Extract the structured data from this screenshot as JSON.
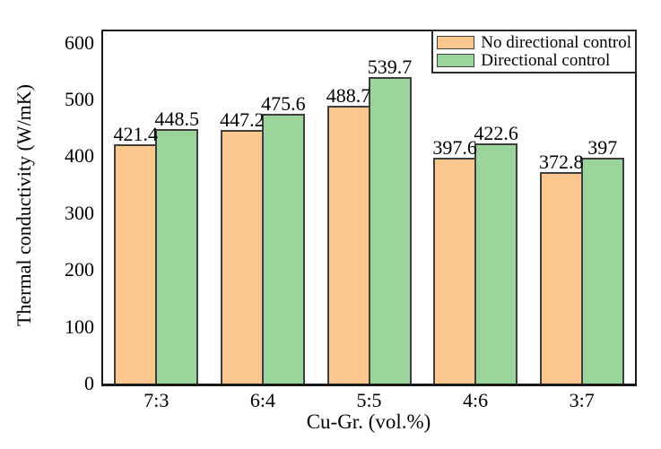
{
  "figure": {
    "background": "#ffffff",
    "frame_color": "#1a1a1a",
    "text_color": "#000000"
  },
  "chart_data": {
    "type": "bar",
    "title": "",
    "xlabel": "Cu-Gr. (vol.%)",
    "ylabel": "Thermal conductivity (W/mK)",
    "categories": [
      "7:3",
      "6:4",
      "5:5",
      "4:6",
      "3:7"
    ],
    "series": [
      {
        "name": "No directional control",
        "color": "#FBC78F",
        "border_color": "#3f3f3f",
        "values": [
          421.4,
          447.2,
          488.7,
          397.6,
          372.8
        ],
        "labels": [
          "421.4",
          "447.2",
          "488.7",
          "397.6",
          "372.8"
        ]
      },
      {
        "name": "Directional control",
        "color": "#9CD59B",
        "border_color": "#3f3f3f",
        "values": [
          448.5,
          475.6,
          539.7,
          422.6,
          397
        ],
        "labels": [
          "448.5",
          "475.6",
          "539.7",
          "422.6",
          "397"
        ]
      }
    ],
    "ylim": [
      0,
      620
    ],
    "yticks": [
      0,
      100,
      200,
      300,
      400,
      500,
      600
    ],
    "legend_position": "top-right-inside",
    "grid": false
  }
}
